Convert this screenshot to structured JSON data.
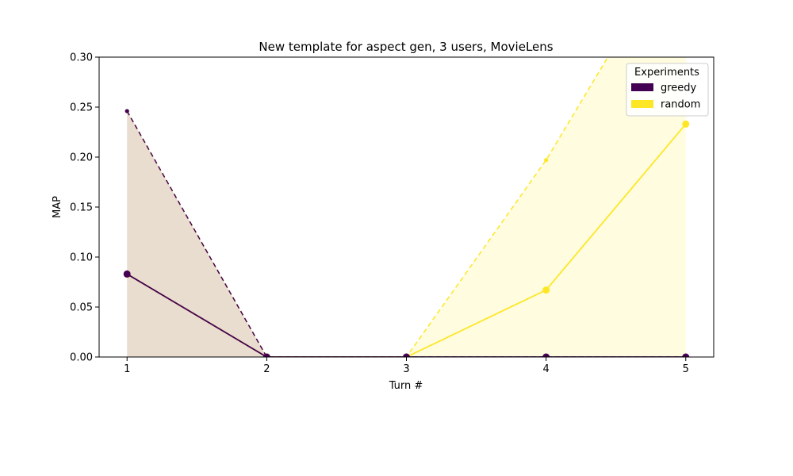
{
  "chart_data": {
    "type": "line",
    "title": "New template for aspect gen, 3 users, MovieLens",
    "xlabel": "Turn #",
    "ylabel": "MAP",
    "x": [
      1,
      2,
      3,
      4,
      5
    ],
    "xlim": [
      0.8,
      5.2
    ],
    "ylim": [
      0,
      0.3
    ],
    "xticks": [
      "1",
      "2",
      "3",
      "4",
      "5"
    ],
    "yticks": [
      "0.00",
      "0.05",
      "0.10",
      "0.15",
      "0.20",
      "0.25",
      "0.30"
    ],
    "legend": {
      "title": "Experiments",
      "placement": "top-right"
    },
    "series": [
      {
        "name": "greedy",
        "color": "#440154",
        "mean": [
          0.083,
          0.0,
          0.0,
          0.0,
          0.0
        ],
        "upper": [
          0.246,
          0.0,
          0.0,
          0.0,
          0.0
        ],
        "lower": [
          0.0,
          0.0,
          0.0,
          0.0,
          0.0
        ]
      },
      {
        "name": "random",
        "color": "#fde725",
        "mean": [
          0.083,
          0.0,
          0.0,
          0.067,
          0.233
        ],
        "upper": [
          0.246,
          0.0,
          0.0,
          0.197,
          0.43
        ],
        "lower": [
          0.0,
          0.0,
          0.0,
          0.0,
          0.0
        ]
      }
    ]
  }
}
